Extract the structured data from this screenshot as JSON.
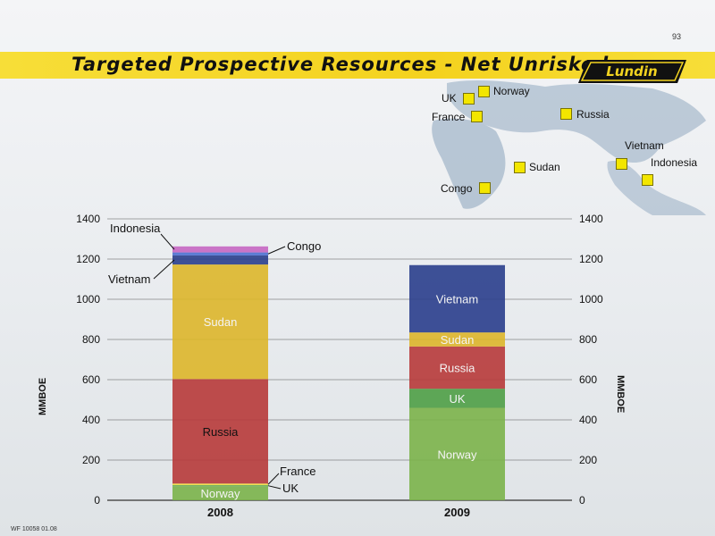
{
  "page": {
    "number": "93",
    "title": "Targeted Prospective Resources - Net Unrisked",
    "logo_text": "Lundin",
    "footer_code": "WF 10058 01.08"
  },
  "map": {
    "markers": [
      {
        "label": "Norway"
      },
      {
        "label": "UK"
      },
      {
        "label": "France"
      },
      {
        "label": "Russia"
      },
      {
        "label": "Vietnam"
      },
      {
        "label": "Indonesia"
      },
      {
        "label": "Sudan"
      },
      {
        "label": "Congo"
      }
    ]
  },
  "colors": {
    "Norway": "#7bb24a",
    "UK": "#4e9e46",
    "France": "#f0e040",
    "Russia": "#b73a3a",
    "Sudan": "#ddb62a",
    "Vietnam": "#2a3e8c",
    "Congo": "#4c6fd0",
    "Indonesia": "#c766c2"
  },
  "chart_data": {
    "type": "bar",
    "stacked": true,
    "categories": [
      "2008",
      "2009"
    ],
    "series": [
      {
        "name": "Norway",
        "values": [
          70,
          460
        ]
      },
      {
        "name": "UK",
        "values": [
          5,
          95
        ]
      },
      {
        "name": "France",
        "values": [
          8,
          0
        ]
      },
      {
        "name": "Russia",
        "values": [
          520,
          210
        ]
      },
      {
        "name": "Sudan",
        "values": [
          570,
          70
        ]
      },
      {
        "name": "Vietnam",
        "values": [
          45,
          335
        ]
      },
      {
        "name": "Congo",
        "values": [
          15,
          0
        ]
      },
      {
        "name": "Indonesia",
        "values": [
          30,
          0
        ]
      }
    ],
    "ylabel": "MMBOE",
    "ylim": [
      0,
      1400
    ],
    "yticks": [
      0,
      200,
      400,
      600,
      800,
      1000,
      1200,
      1400
    ],
    "grid": true
  }
}
